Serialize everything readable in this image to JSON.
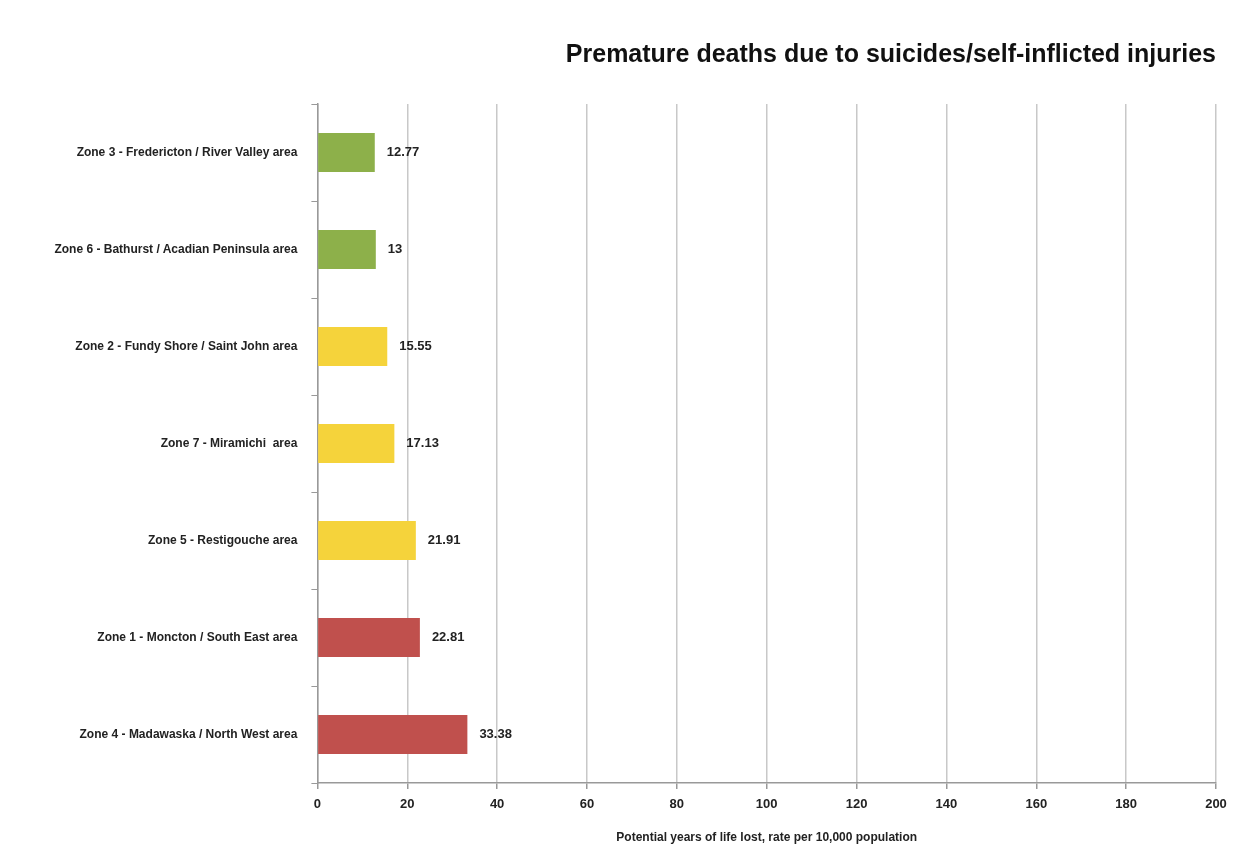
{
  "chart_data": {
    "type": "bar",
    "orientation": "horizontal",
    "title": "Premature deaths due to suicides/self-inflicted injuries",
    "xlabel": "Potential years of life lost, rate per 10,000 population",
    "categories": [
      "Zone 3 - Fredericton / River Valley area",
      "Zone 6 - Bathurst / Acadian Peninsula area",
      "Zone 2 - Fundy Shore / Saint John area",
      "Zone 7 - Miramichi  area",
      "Zone 5 - Restigouche area",
      "Zone 1 - Moncton / South East area",
      "Zone 4 - Madawaska / North West area"
    ],
    "values": [
      12.77,
      13,
      15.55,
      17.13,
      21.91,
      22.81,
      33.38
    ],
    "colors": [
      "#8db04a",
      "#8db04a",
      "#f5d33b",
      "#f5d33b",
      "#f5d33b",
      "#c0504d",
      "#c0504d"
    ],
    "xlim": [
      0,
      200
    ],
    "xticks": [
      0,
      20,
      40,
      60,
      80,
      100,
      120,
      140,
      160,
      180,
      200
    ],
    "grid": "x",
    "data_labels": true,
    "legend": false
  }
}
